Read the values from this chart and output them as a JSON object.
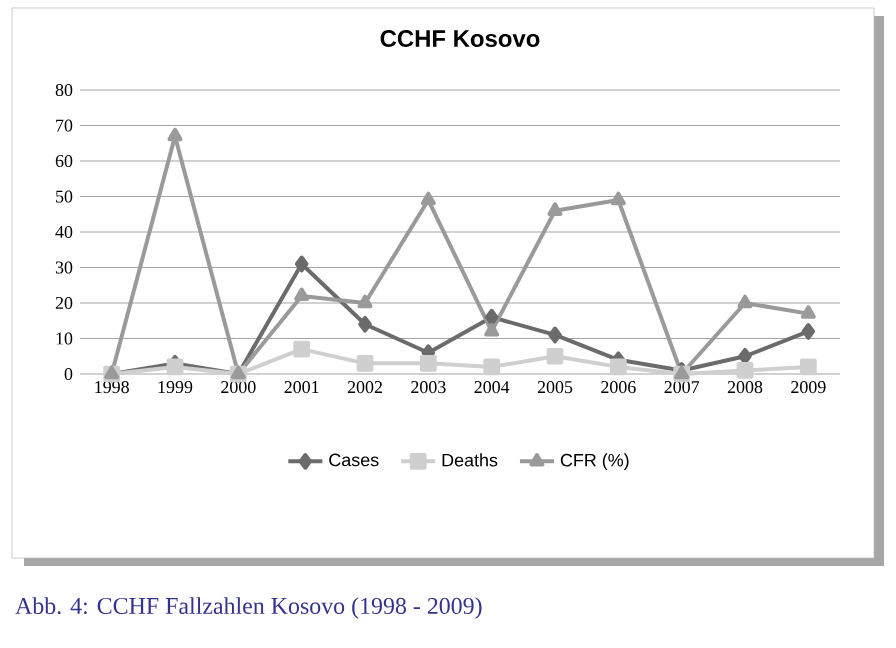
{
  "chart_data": {
    "type": "line",
    "title": "CCHF Kosovo",
    "categories": [
      "1998",
      "1999",
      "2000",
      "2001",
      "2002",
      "2003",
      "2004",
      "2005",
      "2006",
      "2007",
      "2008",
      "2009"
    ],
    "series": [
      {
        "name": "Cases",
        "color": "#6b6b6b",
        "marker": "diamond",
        "values": [
          0,
          3,
          0,
          31,
          14,
          6,
          16,
          11,
          4,
          1,
          5,
          12
        ]
      },
      {
        "name": "Deaths",
        "color": "#cfcfcf",
        "marker": "square",
        "values": [
          0,
          2,
          0,
          7,
          3,
          3,
          2,
          5,
          2,
          0,
          1,
          2
        ]
      },
      {
        "name": "CFR (%)",
        "color": "#9a9a9a",
        "marker": "triangle",
        "values": [
          0,
          67,
          0,
          22,
          20,
          49,
          12,
          46,
          49,
          0,
          20,
          17
        ]
      }
    ],
    "ylim": [
      0,
      80
    ],
    "yticks": [
      0,
      10,
      20,
      30,
      40,
      50,
      60,
      70,
      80
    ],
    "grid": "y",
    "legend": "bottom",
    "line_style": "solid",
    "annotations": [
      "Abb. 4: CCHF Fallzahlen Kosovo (1998 - 2009)"
    ]
  }
}
